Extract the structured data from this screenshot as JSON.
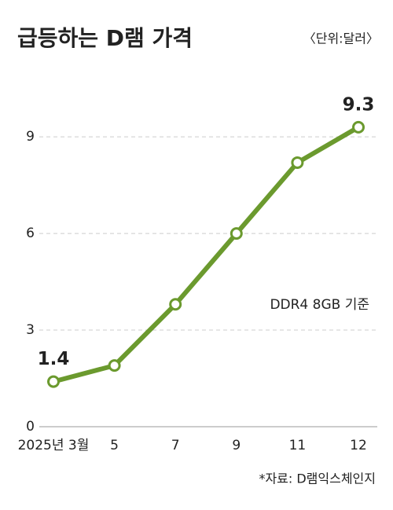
{
  "chart_data": {
    "type": "line",
    "title": "급등하는 D램 가격",
    "unit": "〈단위:달러〉",
    "annotation": "DDR4 8GB 기준",
    "source": "*자료: D램익스체인지",
    "categories": [
      "2025년 3월",
      "5",
      "7",
      "9",
      "11",
      "12"
    ],
    "series": [
      {
        "name": "DDR4 8GB",
        "color": "#6b9a2e",
        "values": [
          1.4,
          1.9,
          3.8,
          6.0,
          8.2,
          9.3
        ],
        "value_labels": [
          "1.4",
          null,
          null,
          null,
          null,
          "9.3"
        ]
      }
    ],
    "ylim": [
      0,
      10.2
    ],
    "yticks": [
      0,
      3,
      6,
      9
    ],
    "grid": true
  }
}
